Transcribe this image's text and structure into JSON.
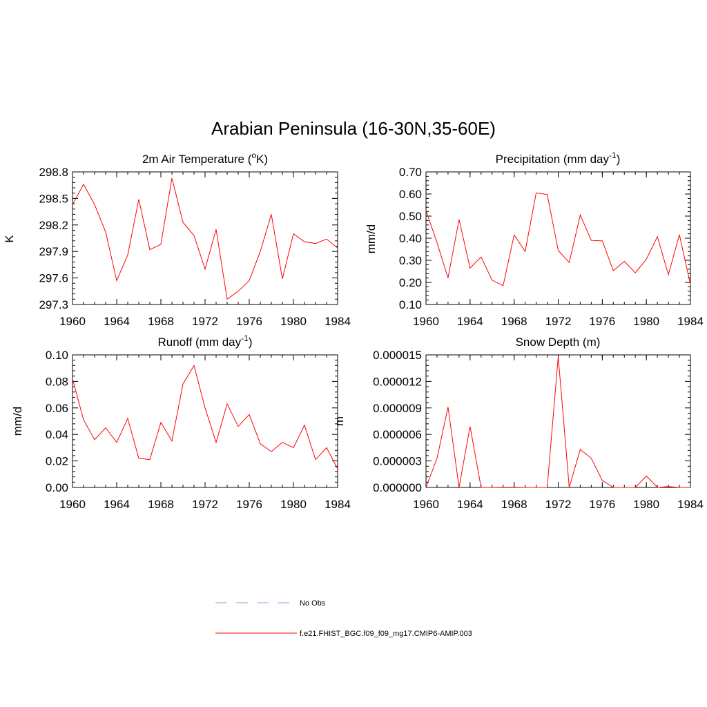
{
  "title": "Arabian Peninsula (16-30N,35-60E)",
  "series_color": "#ff0000",
  "obs_color": "#9999ee",
  "legend": {
    "items": [
      {
        "label": "No Obs",
        "style": "dashed",
        "color": "#9999ee"
      },
      {
        "label": "f.e21.FHIST_BGC.f09_f09_mg17.CMIP6-AMIP.003",
        "style": "solid",
        "color": "#ff0000"
      }
    ]
  },
  "chart_data": [
    {
      "type": "line",
      "title": "2m Air Temperature (",
      "title_sup": "o",
      "title_suffix": "K)",
      "ylabel": "K",
      "x": [
        1960,
        1961,
        1962,
        1963,
        1964,
        1965,
        1966,
        1967,
        1968,
        1969,
        1970,
        1971,
        1972,
        1973,
        1974,
        1975,
        1976,
        1977,
        1978,
        1979,
        1980,
        1981,
        1982,
        1983,
        1984
      ],
      "values": [
        298.43,
        298.66,
        298.43,
        298.12,
        297.57,
        297.86,
        298.49,
        297.92,
        297.98,
        298.73,
        298.23,
        298.08,
        297.7,
        298.15,
        297.36,
        297.45,
        297.57,
        297.9,
        298.32,
        297.59,
        298.1,
        298.01,
        297.99,
        298.04,
        297.94
      ],
      "xlim": [
        1960,
        1984
      ],
      "ylim": [
        297.3,
        298.8
      ],
      "xticks": [
        "1960",
        "1964",
        "1968",
        "1972",
        "1976",
        "1980",
        "1984"
      ],
      "yticks": [
        "298.8",
        "298.5",
        "298.2",
        "297.9",
        "297.6",
        "297.3"
      ]
    },
    {
      "type": "line",
      "title": "Precipitation (mm day",
      "title_sup": "-1",
      "title_suffix": ")",
      "ylabel": "mm/d",
      "x": [
        1960,
        1961,
        1962,
        1963,
        1964,
        1965,
        1966,
        1967,
        1968,
        1969,
        1970,
        1971,
        1972,
        1973,
        1974,
        1975,
        1976,
        1977,
        1978,
        1979,
        1980,
        1981,
        1982,
        1983,
        1984
      ],
      "values": [
        0.525,
        0.38,
        0.22,
        0.485,
        0.265,
        0.315,
        0.21,
        0.185,
        0.415,
        0.34,
        0.605,
        0.598,
        0.345,
        0.29,
        0.505,
        0.39,
        0.388,
        0.253,
        0.295,
        0.243,
        0.305,
        0.407,
        0.235,
        0.416,
        0.19
      ],
      "xlim": [
        1960,
        1984
      ],
      "ylim": [
        0.1,
        0.7
      ],
      "xticks": [
        "1960",
        "1964",
        "1968",
        "1972",
        "1976",
        "1980",
        "1984"
      ],
      "yticks": [
        "0.70",
        "0.60",
        "0.50",
        "0.40",
        "0.30",
        "0.20",
        "0.10"
      ]
    },
    {
      "type": "line",
      "title": "Runoff (mm day",
      "title_sup": "-1",
      "title_suffix": ")",
      "ylabel": "mm/d",
      "x": [
        1960,
        1961,
        1962,
        1963,
        1964,
        1965,
        1966,
        1967,
        1968,
        1969,
        1970,
        1971,
        1972,
        1973,
        1974,
        1975,
        1976,
        1977,
        1978,
        1979,
        1980,
        1981,
        1982,
        1983,
        1984
      ],
      "values": [
        0.082,
        0.051,
        0.036,
        0.045,
        0.034,
        0.052,
        0.022,
        0.021,
        0.049,
        0.035,
        0.078,
        0.092,
        0.06,
        0.034,
        0.063,
        0.046,
        0.055,
        0.033,
        0.027,
        0.034,
        0.03,
        0.047,
        0.021,
        0.03,
        0.014
      ],
      "xlim": [
        1960,
        1984
      ],
      "ylim": [
        0,
        0.1
      ],
      "xticks": [
        "1960",
        "1964",
        "1968",
        "1972",
        "1976",
        "1980",
        "1984"
      ],
      "yticks": [
        "0.10",
        "0.08",
        "0.06",
        "0.04",
        "0.02",
        "0.00"
      ]
    },
    {
      "type": "line",
      "title": "Snow Depth (m)",
      "title_sup": "",
      "title_suffix": "",
      "ylabel": "m",
      "x": [
        1960,
        1961,
        1962,
        1963,
        1964,
        1965,
        1966,
        1967,
        1968,
        1969,
        1970,
        1971,
        1972,
        1973,
        1974,
        1975,
        1976,
        1977,
        1978,
        1979,
        1980,
        1981,
        1982,
        1983,
        1984
      ],
      "values": [
        0.0,
        3.3e-06,
        9.1e-06,
        0.0,
        6.9e-06,
        0.0,
        0.0,
        2e-08,
        2e-08,
        0.0,
        0.0,
        0.0,
        1.48e-05,
        0.0,
        4.3e-06,
        3.3e-06,
        8e-07,
        0.0,
        0.0,
        0.0,
        1.3e-06,
        0.0,
        1e-07,
        0.0,
        0.0
      ],
      "xlim": [
        1960,
        1984
      ],
      "ylim": [
        0,
        1.5e-05
      ],
      "xticks": [
        "1960",
        "1964",
        "1968",
        "1972",
        "1976",
        "1980",
        "1984"
      ],
      "yticks": [
        "0.000015",
        "0.000012",
        "0.000009",
        "0.000006",
        "0.000003",
        "0.000000"
      ]
    }
  ]
}
